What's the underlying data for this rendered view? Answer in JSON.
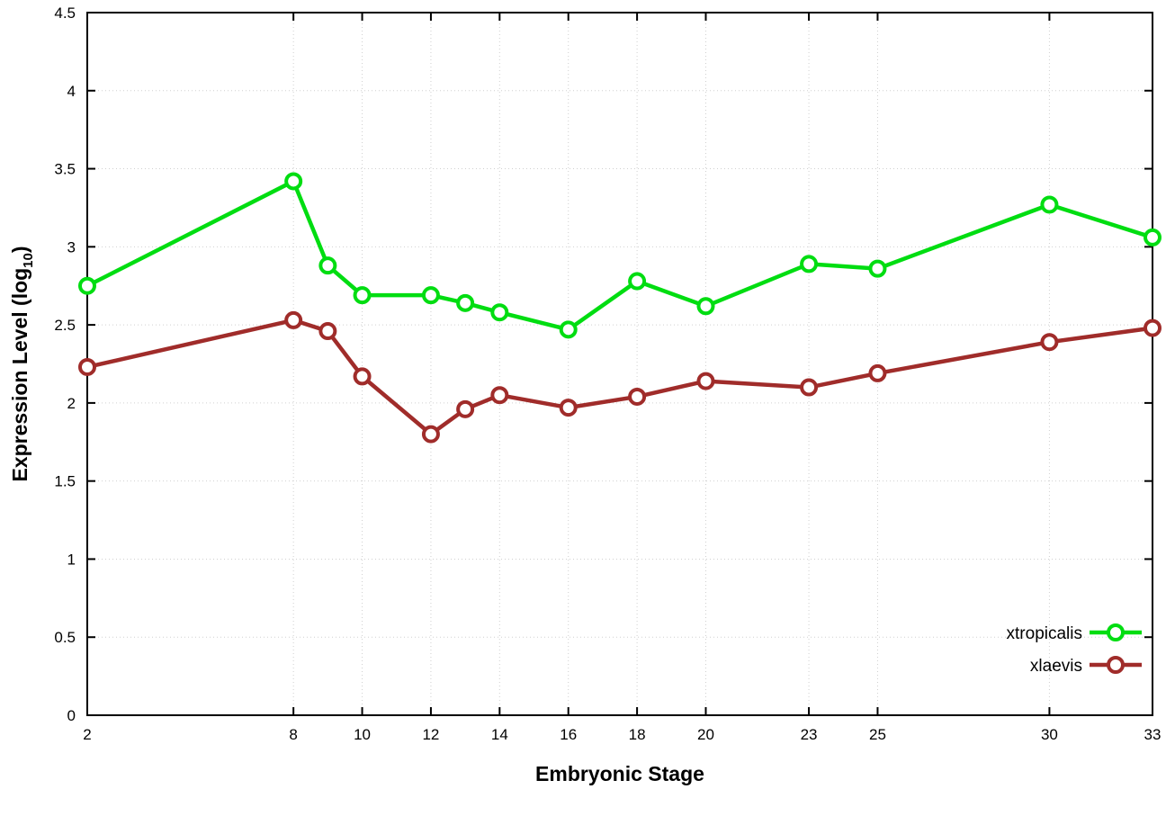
{
  "chart_data": {
    "type": "line",
    "title": "",
    "xlabel": "Embryonic Stage",
    "ylabel": {
      "text": "Expression Level (log",
      "sub": "10",
      "after": ")"
    },
    "xlim": [
      2,
      33
    ],
    "ylim": [
      0,
      4.5
    ],
    "grid": true,
    "legend_position": "bottom-right",
    "xtick_values": [
      2,
      8,
      10,
      12,
      14,
      16,
      18,
      20,
      23,
      25,
      30,
      33
    ],
    "xtick_labels": [
      "2",
      "8",
      "10",
      "12",
      "14",
      "16",
      "18",
      "20",
      "23",
      "25",
      "30",
      "33"
    ],
    "ytick_values": [
      0,
      0.5,
      1,
      1.5,
      2,
      2.5,
      3,
      3.5,
      4,
      4.5
    ],
    "ytick_labels": [
      "0",
      "0.5",
      "1",
      "1.5",
      "2",
      "2.5",
      "3",
      "3.5",
      "4",
      "4.5"
    ],
    "x": [
      2,
      8,
      9,
      10,
      12,
      13,
      14,
      16,
      18,
      20,
      23,
      25,
      30,
      33
    ],
    "series": [
      {
        "name": "xtropicalis",
        "color": "#00dd11",
        "values": [
          2.75,
          3.42,
          2.88,
          2.69,
          2.69,
          2.64,
          2.58,
          2.47,
          2.78,
          2.62,
          2.89,
          2.86,
          3.27,
          3.06
        ]
      },
      {
        "name": "xlaevis",
        "color": "#a02c2a",
        "values": [
          2.23,
          2.53,
          2.46,
          2.17,
          1.8,
          1.96,
          2.05,
          1.97,
          2.04,
          2.14,
          2.1,
          2.19,
          2.39,
          2.48
        ]
      }
    ],
    "colors": {
      "axis": "#000000",
      "grid": "#d0d0d0",
      "marker_fill": "#ffffff",
      "text": "#000000"
    }
  }
}
